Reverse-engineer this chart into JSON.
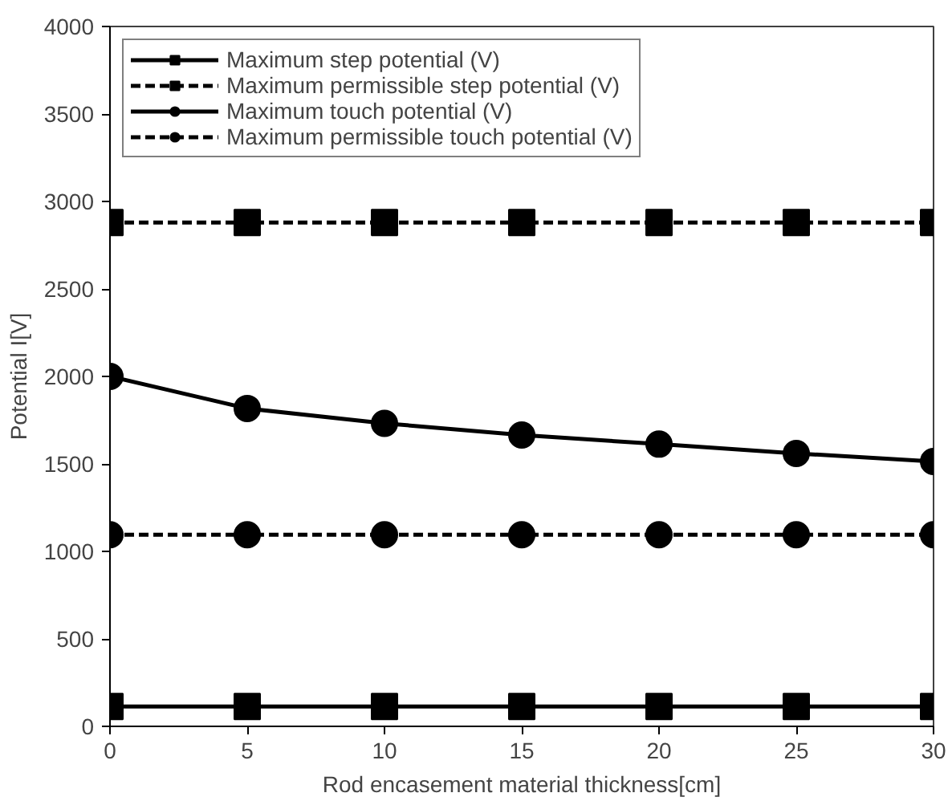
{
  "chart_data": {
    "type": "line",
    "xlabel": "Rod encasement material thickness[cm]",
    "ylabel": "Potential I[V]",
    "x": [
      0,
      5,
      10,
      15,
      20,
      25,
      30
    ],
    "xlim": [
      0,
      30
    ],
    "xticks": [
      0,
      5,
      10,
      15,
      20,
      25,
      30
    ],
    "ylim": [
      0,
      4000
    ],
    "yticks": [
      0,
      500,
      1000,
      1500,
      2000,
      2500,
      3000,
      3500,
      4000
    ],
    "grid": false,
    "legend": "top left",
    "series": [
      {
        "name": "Maximum step potential (V)",
        "color": "#000000",
        "marker": "square",
        "line_style": "solid",
        "values": [
          113,
          113,
          113,
          113,
          113,
          113,
          113
        ]
      },
      {
        "name": "Maximum permissible step potential (V)",
        "color": "#000000",
        "marker": "square",
        "line_style": "dashed",
        "values": [
          2880,
          2880,
          2880,
          2880,
          2880,
          2880,
          2880
        ]
      },
      {
        "name": "Maximum touch potential (V)",
        "color": "#000000",
        "marker": "circle",
        "line_style": "solid",
        "values": [
          2000,
          1817,
          1732,
          1665,
          1613,
          1560,
          1514
        ]
      },
      {
        "name": "Maximum permissible touch potential (V)",
        "color": "#000000",
        "marker": "circle",
        "line_style": "dashed",
        "values": [
          1095,
          1095,
          1095,
          1095,
          1095,
          1095,
          1095
        ]
      }
    ]
  }
}
